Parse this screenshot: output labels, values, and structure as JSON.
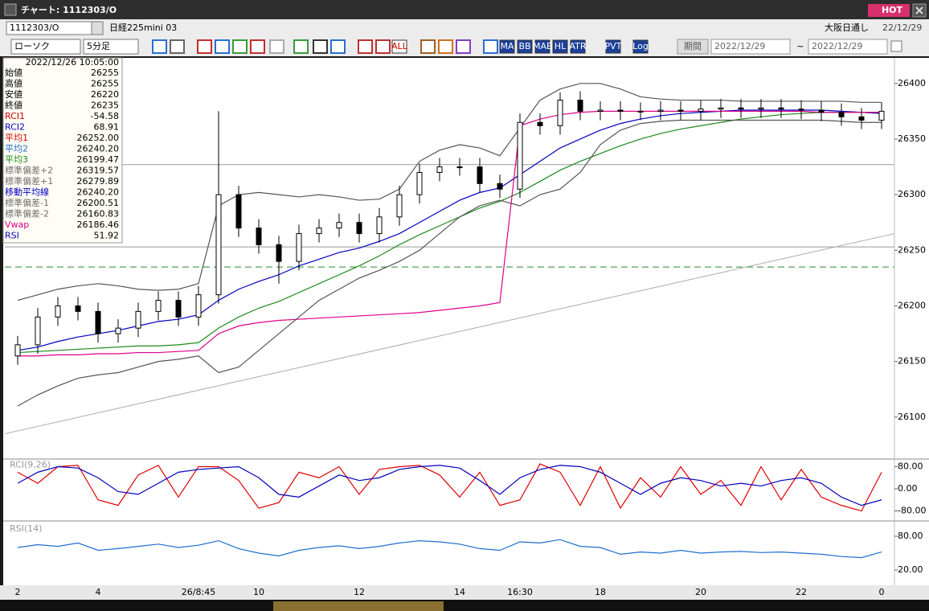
{
  "window": {
    "title": "チャート: 1112303/O",
    "hot": "HOT",
    "symbol": "1112303/O",
    "name": "日経225mini 03",
    "market": "大阪日通し",
    "date": "22/12/29"
  },
  "toolbar": {
    "chart_type": "ローソク",
    "interval": "5分足",
    "buttons": [
      "ALL",
      "MA",
      "BB",
      "MAE",
      "HL",
      "ATR",
      "PVT",
      "Log"
    ],
    "period": "期間",
    "from": "2022/12/29",
    "separator": "~",
    "to": "2022/12/29"
  },
  "info_panel": {
    "datetime": "2022/12/26 10:05:00",
    "rows": [
      {
        "label": "始値",
        "value": "26255",
        "color": "#000000"
      },
      {
        "label": "高値",
        "value": "26255",
        "color": "#000000"
      },
      {
        "label": "安値",
        "value": "26220",
        "color": "#000000"
      },
      {
        "label": "終値",
        "value": "26235",
        "color": "#000000"
      },
      {
        "label": "RCI1",
        "value": "-54.58",
        "color": "#d00000"
      },
      {
        "label": "RCI2",
        "value": "68.91",
        "color": "#0000c0"
      },
      {
        "label": "平均1",
        "value": "26252.00",
        "color": "#d00000"
      },
      {
        "label": "平均2",
        "value": "26240.20",
        "color": "#1e6fd0"
      },
      {
        "label": "平均3",
        "value": "26199.47",
        "color": "#1a8a1a"
      },
      {
        "label": "標準偏差+2",
        "value": "26319.57",
        "color": "#707070"
      },
      {
        "label": "標準偏差+1",
        "value": "26279.89",
        "color": "#707070"
      },
      {
        "label": "移動平均線",
        "value": "26240.20",
        "color": "#0000c0"
      },
      {
        "label": "標準偏差-1",
        "value": "26200.51",
        "color": "#707070"
      },
      {
        "label": "標準偏差-2",
        "value": "26160.83",
        "color": "#707070"
      },
      {
        "label": "Vwap",
        "value": "26186.46",
        "color": "#e0008a"
      },
      {
        "label": "RSI",
        "value": "51.92",
        "color": "#0000c0"
      }
    ]
  },
  "chart_data": [
    {
      "type": "candlestick",
      "categories": [
        "2",
        null,
        null,
        null,
        "4",
        null,
        null,
        null,
        null,
        "26/8:45",
        null,
        null,
        "10",
        null,
        null,
        null,
        null,
        "12",
        null,
        null,
        null,
        null,
        "14",
        null,
        null,
        "16:30",
        null,
        null,
        null,
        "18",
        null,
        null,
        null,
        null,
        "20",
        null,
        null,
        null,
        null,
        "22",
        null,
        null,
        null,
        "0"
      ],
      "open": [
        26155,
        26165,
        26190,
        26200,
        26195,
        26175,
        26180,
        26195,
        26205,
        26190,
        26210,
        26300,
        26270,
        26255,
        26240,
        26265,
        26270,
        26275,
        26265,
        26280,
        26300,
        26320,
        26325,
        26325,
        26310,
        26305,
        26365,
        26362,
        26385,
        26375,
        26376,
        26375,
        26375,
        26376,
        26375,
        26377,
        26378,
        26377,
        26378,
        26377,
        26376,
        26374,
        26370,
        26367
      ],
      "high": [
        26173,
        26198,
        26208,
        26208,
        26203,
        26188,
        26203,
        26213,
        26213,
        26218,
        26375,
        26308,
        26278,
        26263,
        26273,
        26278,
        26283,
        26283,
        26288,
        26308,
        26328,
        26333,
        26333,
        26333,
        26318,
        26373,
        26373,
        26392,
        26393,
        26384,
        26384,
        26383,
        26384,
        26384,
        26385,
        26386,
        26386,
        26386,
        26386,
        26385,
        26384,
        26382,
        26378,
        26383
      ],
      "low": [
        26147,
        26157,
        26182,
        26187,
        26167,
        26167,
        26172,
        26187,
        26182,
        26182,
        26202,
        26262,
        26247,
        26220,
        26232,
        26257,
        26262,
        26257,
        26257,
        26272,
        26292,
        26312,
        26317,
        26302,
        26297,
        26297,
        26354,
        26354,
        26367,
        26367,
        26367,
        26367,
        26367,
        26367,
        26367,
        26369,
        26369,
        26369,
        26369,
        26368,
        26366,
        26362,
        26359,
        26359
      ],
      "close": [
        26165,
        26190,
        26200,
        26195,
        26175,
        26180,
        26195,
        26205,
        26190,
        26210,
        26300,
        26270,
        26255,
        26240,
        26265,
        26270,
        26275,
        26265,
        26280,
        26300,
        26320,
        26325,
        26325,
        26310,
        26305,
        26365,
        26362,
        26385,
        26375,
        26376,
        26375,
        26375,
        26376,
        26375,
        26377,
        26378,
        26377,
        26378,
        26377,
        26376,
        26374,
        26370,
        26367,
        26375
      ],
      "series": [
        {
          "name": "移動平均線",
          "color": "#0000c0",
          "values": [
            26160,
            26163,
            26168,
            26172,
            26175,
            26178,
            26182,
            26186,
            26188,
            26192,
            26205,
            26215,
            26222,
            26228,
            26236,
            26242,
            26248,
            26252,
            26258,
            26265,
            26275,
            26285,
            26295,
            26302,
            26306,
            26318,
            26330,
            26342,
            26350,
            26358,
            26364,
            26368,
            26371,
            26373,
            26374,
            26375,
            26376,
            26376,
            26376,
            26376,
            26376,
            26375,
            26374,
            26373
          ]
        },
        {
          "name": "平均3",
          "color": "#1a8a1a",
          "values": [
            26158,
            26159,
            26160,
            26161,
            26162,
            26163,
            26164,
            26164,
            26165,
            26167,
            26180,
            26190,
            26198,
            26204,
            26212,
            26220,
            26228,
            26236,
            26245,
            26255,
            26264,
            26272,
            26280,
            26288,
            26294,
            26302,
            26312,
            26322,
            26330,
            26337,
            26344,
            26350,
            26355,
            26359,
            26362,
            26365,
            26368,
            26370,
            26372,
            26373,
            26374,
            26374,
            26374,
            26374
          ]
        },
        {
          "name": "Vwap",
          "color": "#e0008a",
          "values": [
            26155,
            26155,
            26156,
            26156,
            26157,
            26157,
            26158,
            26158,
            26159,
            26160,
            26175,
            26182,
            26185,
            26187,
            26188,
            26189,
            26190,
            26191,
            26192,
            26193,
            26194,
            26196,
            26198,
            26200,
            26203,
            26362,
            26368,
            26372,
            26374,
            26375,
            26375,
            26375,
            26375,
            26375,
            26375,
            26375,
            26375,
            26375,
            26375,
            26375,
            26374,
            26374,
            26374,
            26374
          ]
        },
        {
          "name": "標準偏差+2",
          "color": "#555555",
          "values": [
            26205,
            26210,
            26215,
            26218,
            26220,
            26218,
            26215,
            26214,
            26215,
            26220,
            26290,
            26300,
            26302,
            26300,
            26298,
            26300,
            26298,
            26295,
            26296,
            26305,
            26330,
            26340,
            26345,
            26342,
            26335,
            26360,
            26385,
            26395,
            26400,
            26400,
            26395,
            26388,
            26386,
            26385,
            26385,
            26385,
            26384,
            26384,
            26384,
            26384,
            26384,
            26384,
            26383,
            26383
          ]
        },
        {
          "name": "標準偏差-2",
          "color": "#555555",
          "values": [
            26110,
            26120,
            26128,
            26135,
            26138,
            26140,
            26145,
            26150,
            26152,
            26155,
            26140,
            26145,
            26160,
            26175,
            26190,
            26205,
            26215,
            26225,
            26232,
            26240,
            26250,
            26265,
            26280,
            26290,
            26295,
            26290,
            26300,
            26305,
            26320,
            26345,
            26358,
            26364,
            26366,
            26367,
            26367,
            26367,
            26367,
            26367,
            26367,
            26367,
            26367,
            26366,
            26365,
            26365
          ]
        }
      ],
      "levels": [
        {
          "value": 26327,
          "color": "#999999",
          "dashed": false
        },
        {
          "value": 26253,
          "color": "#999999",
          "dashed": false
        },
        {
          "value": 26235,
          "color": "#2a8a2a",
          "dashed": true
        }
      ],
      "trendline": {
        "values": [
          26085,
          26265
        ],
        "color": "#aaaaaa"
      },
      "ylim": [
        26063,
        26423
      ],
      "yticks": [
        26100,
        26150,
        26200,
        26250,
        26300,
        26350,
        26400
      ]
    },
    {
      "type": "line",
      "title": "RCI(9,26)",
      "series": [
        {
          "name": "RCI1",
          "color": "#e00000",
          "values": [
            60,
            20,
            80,
            85,
            -40,
            -60,
            50,
            85,
            -30,
            80,
            80,
            30,
            -70,
            -50,
            60,
            40,
            80,
            -20,
            70,
            80,
            85,
            50,
            -30,
            60,
            -60,
            -40,
            90,
            60,
            -60,
            80,
            -70,
            40,
            -30,
            80,
            -20,
            30,
            -60,
            80,
            -40,
            70,
            -30,
            -60,
            -80,
            60
          ]
        },
        {
          "name": "RCI2",
          "color": "#0000c0",
          "values": [
            20,
            60,
            80,
            75,
            40,
            -10,
            -20,
            20,
            60,
            70,
            75,
            80,
            40,
            -20,
            -30,
            10,
            50,
            30,
            40,
            70,
            80,
            85,
            75,
            30,
            -20,
            40,
            70,
            85,
            80,
            60,
            20,
            -20,
            20,
            40,
            30,
            10,
            20,
            10,
            30,
            40,
            20,
            -30,
            -60,
            -40
          ]
        }
      ],
      "ylim": [
        -100,
        100
      ],
      "yticks": [
        {
          "value": -80,
          "label": "-80.00"
        },
        {
          "value": 0,
          "label": "0.00"
        },
        {
          "value": 80,
          "label": "80.00"
        }
      ]
    },
    {
      "type": "line",
      "title": "RSI(14)",
      "series": [
        {
          "name": "RSI",
          "color": "#1e6fd0",
          "values": [
            60,
            65,
            62,
            68,
            55,
            58,
            62,
            66,
            60,
            64,
            72,
            58,
            50,
            45,
            55,
            60,
            63,
            58,
            62,
            68,
            72,
            70,
            66,
            58,
            55,
            70,
            68,
            74,
            62,
            60,
            48,
            52,
            50,
            55,
            50,
            52,
            53,
            51,
            52,
            50,
            48,
            44,
            42,
            52
          ]
        }
      ],
      "ylim": [
        0,
        100
      ],
      "yticks": [
        {
          "value": 20,
          "label": "20.00"
        },
        {
          "value": 80,
          "label": "80.00"
        }
      ]
    }
  ]
}
